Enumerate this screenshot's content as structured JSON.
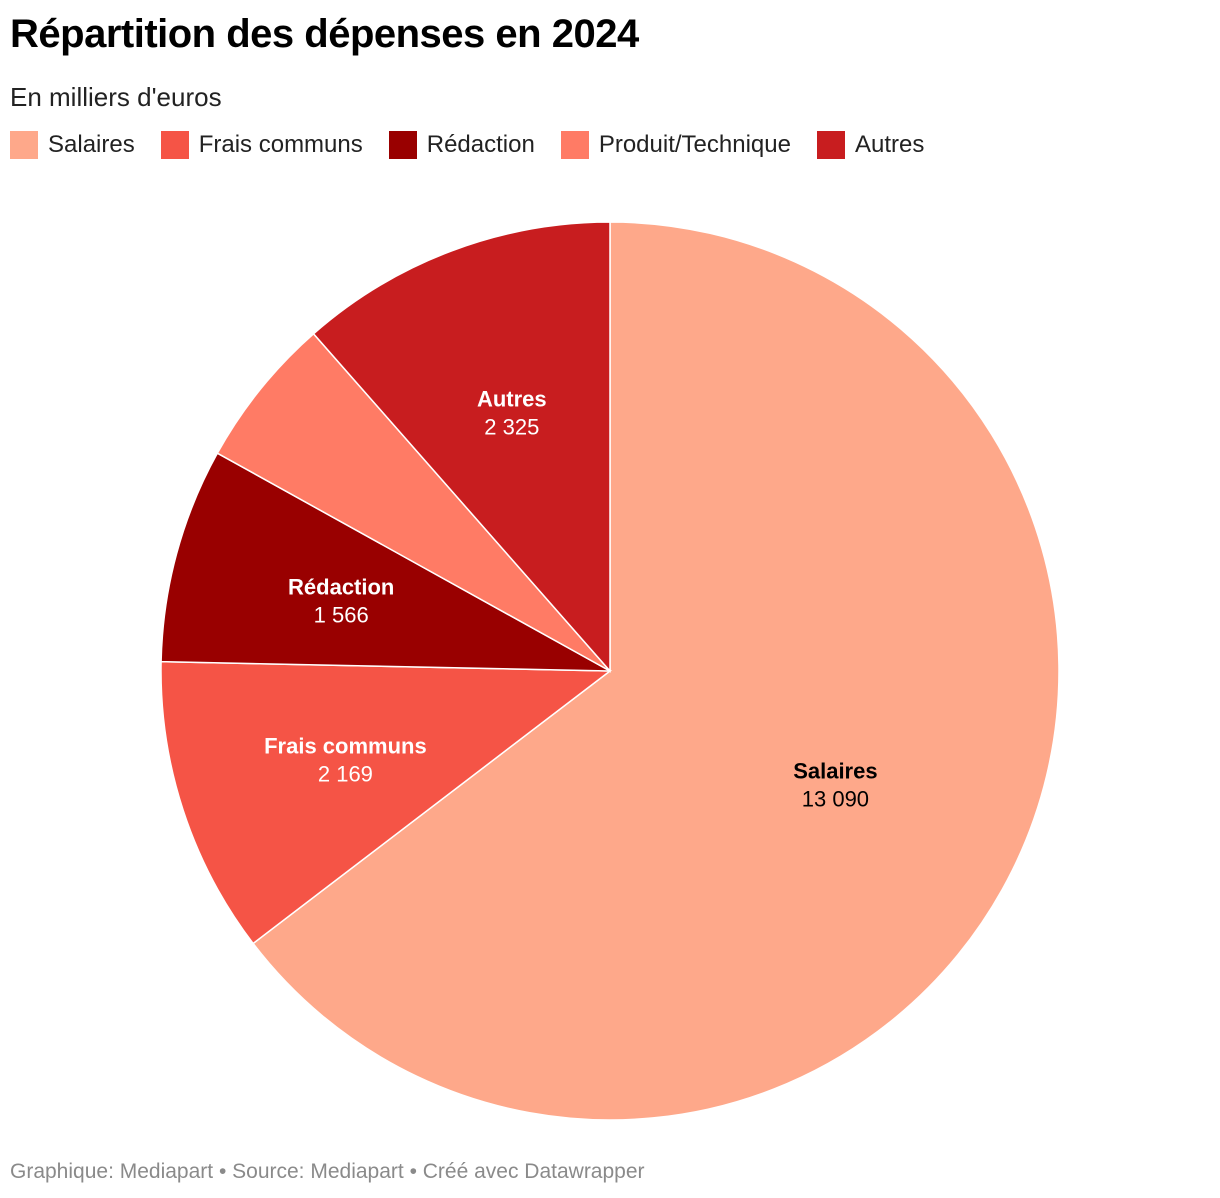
{
  "title": "Répartition des dépenses en 2024",
  "subtitle": "En milliers d'euros",
  "footer": "Graphique: Mediapart • Source: Mediapart • Créé avec Datawrapper",
  "chart_data": {
    "type": "pie",
    "categories": [
      "Salaires",
      "Frais communs",
      "Rédaction",
      "Produit/Technique",
      "Autres"
    ],
    "values": [
      13090,
      2169,
      1566,
      1106,
      2325
    ],
    "value_labels": [
      "13 090",
      "2 169",
      "1 566",
      "",
      "2 325"
    ],
    "colors": [
      "#FEA88A",
      "#F55446",
      "#990000",
      "#FF7B65",
      "#C81D1F"
    ],
    "label_colors": [
      "#000000",
      "#ffffff",
      "#ffffff",
      "#ffffff",
      "#ffffff"
    ],
    "show_label": [
      true,
      true,
      true,
      false,
      true
    ],
    "legend_position": "top-left"
  }
}
